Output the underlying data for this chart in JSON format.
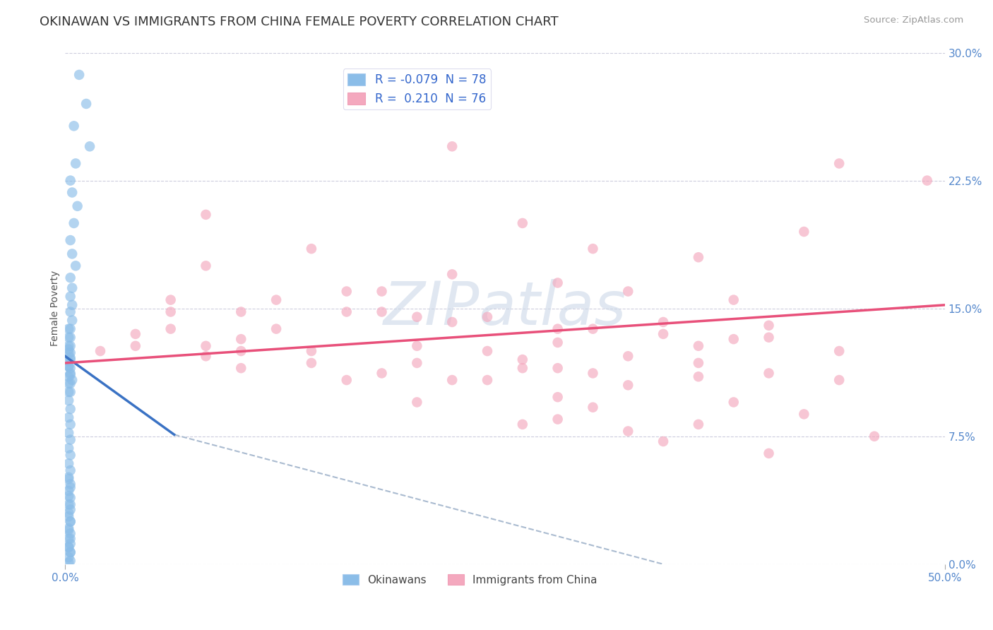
{
  "title": "OKINAWAN VS IMMIGRANTS FROM CHINA FEMALE POVERTY CORRELATION CHART",
  "source": "Source: ZipAtlas.com",
  "ylabel": "Female Poverty",
  "r_okinawan": -0.079,
  "n_okinawan": 78,
  "r_china": 0.21,
  "n_china": 76,
  "xlim": [
    0.0,
    0.5
  ],
  "ylim": [
    0.0,
    0.3
  ],
  "yticks_right": [
    0.0,
    0.075,
    0.15,
    0.225,
    0.3
  ],
  "ytick_labels_right": [
    "0.0%",
    "7.5%",
    "15.0%",
    "22.5%",
    "30.0%"
  ],
  "color_okinawan": "#8bbde8",
  "color_china": "#f4a8be",
  "line_color_okinawan": "#3a72c4",
  "line_color_china": "#e8507a",
  "line_color_dashed": "#aabbd0",
  "watermark_color": "#ccd8e8",
  "legend_label_okinawan": "Okinawans",
  "legend_label_china": "Immigrants from China",
  "okinawan_x": [
    0.008,
    0.012,
    0.005,
    0.014,
    0.006,
    0.003,
    0.004,
    0.007,
    0.005,
    0.003,
    0.004,
    0.006,
    0.003,
    0.004,
    0.003,
    0.004,
    0.003,
    0.004,
    0.003,
    0.002,
    0.003,
    0.002,
    0.003,
    0.002,
    0.003,
    0.004,
    0.002,
    0.003,
    0.002,
    0.003,
    0.002,
    0.003,
    0.002,
    0.003,
    0.002,
    0.002,
    0.003,
    0.002,
    0.003,
    0.002,
    0.003,
    0.002,
    0.003,
    0.002,
    0.003,
    0.002,
    0.003,
    0.002,
    0.003,
    0.002,
    0.003,
    0.002,
    0.003,
    0.002,
    0.003,
    0.002,
    0.003,
    0.002,
    0.003,
    0.002,
    0.003,
    0.002,
    0.003,
    0.002,
    0.003,
    0.002,
    0.003,
    0.002,
    0.003,
    0.002,
    0.003,
    0.002,
    0.003,
    0.002,
    0.003,
    0.002,
    0.003,
    0.002
  ],
  "okinawan_y": [
    0.287,
    0.27,
    0.257,
    0.245,
    0.235,
    0.225,
    0.218,
    0.21,
    0.2,
    0.19,
    0.182,
    0.175,
    0.168,
    0.162,
    0.157,
    0.152,
    0.148,
    0.143,
    0.138,
    0.133,
    0.128,
    0.124,
    0.12,
    0.116,
    0.112,
    0.108,
    0.138,
    0.133,
    0.128,
    0.124,
    0.119,
    0.115,
    0.11,
    0.106,
    0.101,
    0.126,
    0.121,
    0.116,
    0.111,
    0.106,
    0.101,
    0.096,
    0.091,
    0.086,
    0.082,
    0.077,
    0.073,
    0.068,
    0.064,
    0.059,
    0.055,
    0.051,
    0.047,
    0.043,
    0.039,
    0.035,
    0.032,
    0.028,
    0.025,
    0.021,
    0.018,
    0.015,
    0.012,
    0.01,
    0.007,
    0.05,
    0.045,
    0.04,
    0.035,
    0.03,
    0.025,
    0.02,
    0.015,
    0.01,
    0.007,
    0.004,
    0.002,
    0.001
  ],
  "china_x": [
    0.22,
    0.44,
    0.49,
    0.08,
    0.26,
    0.42,
    0.14,
    0.3,
    0.36,
    0.18,
    0.08,
    0.22,
    0.28,
    0.32,
    0.38,
    0.06,
    0.16,
    0.24,
    0.34,
    0.4,
    0.12,
    0.2,
    0.28,
    0.34,
    0.4,
    0.1,
    0.22,
    0.3,
    0.38,
    0.16,
    0.28,
    0.36,
    0.44,
    0.1,
    0.24,
    0.32,
    0.14,
    0.26,
    0.36,
    0.06,
    0.18,
    0.28,
    0.4,
    0.04,
    0.2,
    0.3,
    0.44,
    0.12,
    0.26,
    0.36,
    0.08,
    0.2,
    0.32,
    0.1,
    0.24,
    0.02,
    0.14,
    0.28,
    0.38,
    0.06,
    0.18,
    0.3,
    0.42,
    0.04,
    0.16,
    0.28,
    0.36,
    0.22,
    0.32,
    0.46,
    0.08,
    0.2,
    0.34,
    0.1,
    0.26,
    0.4
  ],
  "china_y": [
    0.245,
    0.235,
    0.225,
    0.205,
    0.2,
    0.195,
    0.185,
    0.185,
    0.18,
    0.16,
    0.175,
    0.17,
    0.165,
    0.16,
    0.155,
    0.148,
    0.148,
    0.145,
    0.142,
    0.14,
    0.155,
    0.145,
    0.138,
    0.135,
    0.133,
    0.148,
    0.142,
    0.138,
    0.132,
    0.16,
    0.13,
    0.128,
    0.125,
    0.132,
    0.125,
    0.122,
    0.125,
    0.12,
    0.118,
    0.155,
    0.148,
    0.115,
    0.112,
    0.135,
    0.128,
    0.112,
    0.108,
    0.138,
    0.115,
    0.11,
    0.128,
    0.118,
    0.105,
    0.125,
    0.108,
    0.125,
    0.118,
    0.098,
    0.095,
    0.138,
    0.112,
    0.092,
    0.088,
    0.128,
    0.108,
    0.085,
    0.082,
    0.108,
    0.078,
    0.075,
    0.122,
    0.095,
    0.072,
    0.115,
    0.082,
    0.065
  ],
  "trendline_okinawan_x0": 0.0,
  "trendline_okinawan_y0": 0.122,
  "trendline_okinawan_x1": 0.062,
  "trendline_okinawan_y1": 0.076,
  "trendline_dashed_x1": 0.34,
  "trendline_dashed_y1": 0.0,
  "trendline_china_x0": 0.0,
  "trendline_china_y0": 0.118,
  "trendline_china_x1": 0.5,
  "trendline_china_y1": 0.152
}
